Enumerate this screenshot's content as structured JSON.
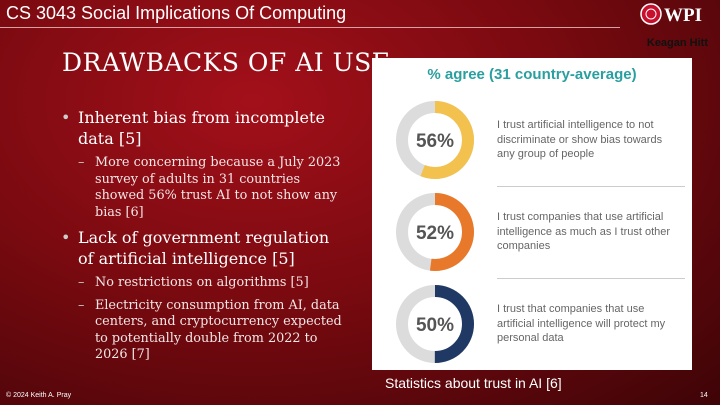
{
  "header": {
    "course": "CS 3043 Social Implications Of Computing",
    "logo": "WPI",
    "author": "Keagan Hitt"
  },
  "slide": {
    "title": "DRAWBACKS OF AI USE",
    "bullets": [
      {
        "text": "Inherent bias from incomplete data [5]",
        "sub": [
          "More concerning because a July 2023 survey of adults in 31 countries showed 56% trust AI to not show any bias [6]"
        ]
      },
      {
        "text": "Lack of government regulation of artificial intelligence [5]",
        "sub": [
          "No restrictions on algorithms [5]",
          "Electricity consumption from AI, data centers, and cryptocurrency expected to potentially double from 2022 to 2026 [7]"
        ]
      }
    ]
  },
  "figure": {
    "title": "% agree (31 country-average)",
    "items": [
      {
        "value": 56,
        "value_label": "56%",
        "color": "#f2c14e",
        "text": "I trust artificial intelligence to not discriminate or show bias towards any group of people"
      },
      {
        "value": 52,
        "value_label": "52%",
        "color": "#e8792a",
        "text": "I trust companies that use artificial intelligence as much as I trust other companies"
      },
      {
        "value": 50,
        "value_label": "50%",
        "color": "#1f3864",
        "text": "I trust that companies that use artificial intelligence will protect my personal data"
      }
    ],
    "caption": "Statistics about trust in AI [6]"
  },
  "footer": {
    "copyright": "© 2024 Keith A. Pray",
    "page": "14"
  }
}
